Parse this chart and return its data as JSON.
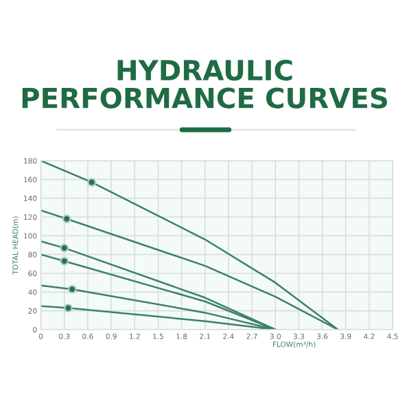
{
  "chart_data": {
    "type": "line",
    "title": "HYDRAULIC\nPERFORMANCE CURVES",
    "xlabel": "FLOW(m³/h)",
    "ylabel": "TOTAL HEAD(m)",
    "xlim": [
      0,
      4.5
    ],
    "xticks": [
      0,
      0.3,
      0.6,
      0.9,
      1.2,
      1.5,
      1.8,
      2.1,
      2.4,
      2.7,
      {
        "value": 3.0,
        "label": "3.0"
      },
      3.3,
      3.6,
      3.9,
      4.2,
      4.5
    ],
    "ylim": [
      0,
      180
    ],
    "yticks": [
      0,
      20,
      40,
      60,
      80,
      100,
      120,
      140,
      160,
      180
    ],
    "grid": true,
    "marker": "none",
    "series": [
      {
        "color": "#3d7f6c",
        "x": [
          0,
          0.65,
          2.1,
          3.0,
          3.8
        ],
        "values": [
          180,
          157,
          96,
          50,
          0
        ]
      },
      {
        "color": "#3d7f6c",
        "x": [
          0,
          0.33,
          2.1,
          3.0,
          3.8
        ],
        "values": [
          127,
          118,
          68,
          35,
          0
        ]
      },
      {
        "color": "#3d7f6c",
        "x": [
          0,
          0.3,
          2.1,
          3.0
        ],
        "values": [
          94,
          87,
          34,
          0
        ]
      },
      {
        "color": "#3d7f6c",
        "x": [
          0,
          0.3,
          2.1,
          3.0
        ],
        "values": [
          80,
          73,
          30,
          0
        ]
      },
      {
        "color": "#3d7f6c",
        "x": [
          0,
          0.4,
          2.1,
          3.0
        ],
        "values": [
          47,
          43,
          18,
          0
        ]
      },
      {
        "color": "#3d7f6c",
        "x": [
          0,
          0.35,
          2.1,
          3.0
        ],
        "values": [
          25,
          23,
          9,
          0
        ]
      },
      {
        "type": "scatter",
        "color": "#2f6e5c",
        "marker": "circle",
        "x": [
          0.65,
          0.33,
          0.3,
          0.3,
          0.4,
          0.35
        ],
        "values": [
          157,
          118,
          87,
          73,
          43,
          23
        ]
      }
    ]
  }
}
